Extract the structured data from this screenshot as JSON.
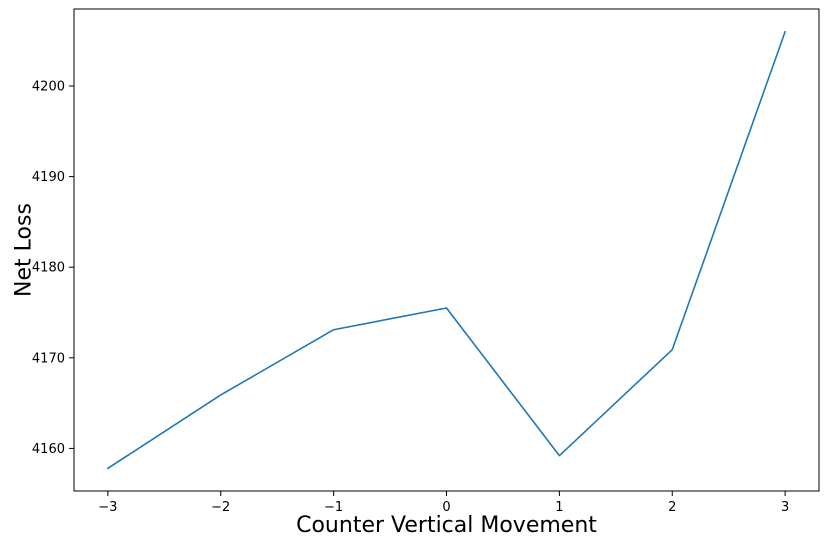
{
  "chart_data": {
    "type": "line",
    "title": "",
    "xlabel": "Counter Vertical Movement",
    "ylabel": "Net Loss",
    "x": [
      -3,
      -2,
      -1,
      0,
      1,
      2,
      3
    ],
    "series": [
      {
        "values": [
          4157.8,
          4165.9,
          4173.1,
          4175.5,
          4159.2,
          4170.9,
          4206.0
        ]
      }
    ],
    "xticks": [
      -3,
      -2,
      -1,
      0,
      1,
      2,
      3
    ],
    "xtick_labels": [
      "−3",
      "−2",
      "−1",
      "0",
      "1",
      "2",
      "3"
    ],
    "yticks": [
      4160,
      4170,
      4180,
      4190,
      4200
    ],
    "ytick_labels": [
      "4160",
      "4170",
      "4180",
      "4190",
      "4200"
    ],
    "xlim": [
      -3.3,
      3.3
    ],
    "ylim": [
      4155.3,
      4208.5
    ],
    "grid": false,
    "legend": "none",
    "colors": {
      "line": "#1f77b4",
      "axes": "#000000"
    }
  }
}
